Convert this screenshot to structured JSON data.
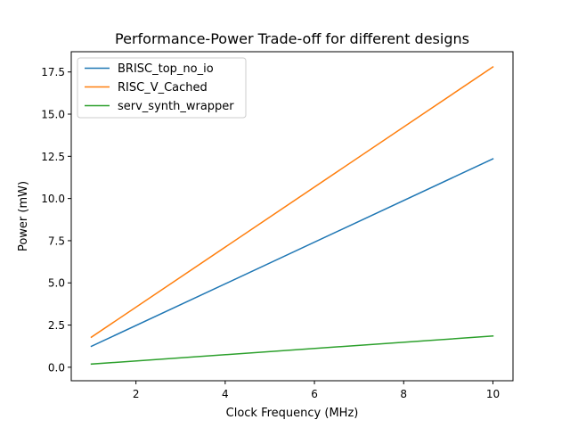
{
  "chart_data": {
    "type": "line",
    "title": "Performance-Power Trade-off for different designs",
    "xlabel": "Clock Frequency (MHz)",
    "ylabel": "Power (mW)",
    "xlim": [
      0.55,
      10.45
    ],
    "ylim": [
      -0.8,
      18.7
    ],
    "xticks": [
      2,
      4,
      6,
      8,
      10
    ],
    "yticks": [
      0.0,
      2.5,
      5.0,
      7.5,
      10.0,
      12.5,
      15.0,
      17.5
    ],
    "xtick_labels": [
      "2",
      "4",
      "6",
      "8",
      "10"
    ],
    "ytick_labels": [
      "0.0",
      "2.5",
      "5.0",
      "7.5",
      "10.0",
      "12.5",
      "15.0",
      "17.5"
    ],
    "grid": false,
    "legend_position": "top-left",
    "series": [
      {
        "name": "BRISC_top_no_io",
        "color": "#1f77b4",
        "x": [
          1,
          10
        ],
        "y": [
          1.24,
          12.35
        ]
      },
      {
        "name": "RISC_V_Cached",
        "color": "#ff7f0e",
        "x": [
          1,
          10
        ],
        "y": [
          1.78,
          17.8
        ]
      },
      {
        "name": "serv_synth_wrapper",
        "color": "#2ca02c",
        "x": [
          1,
          10
        ],
        "y": [
          0.19,
          1.85
        ]
      }
    ]
  }
}
